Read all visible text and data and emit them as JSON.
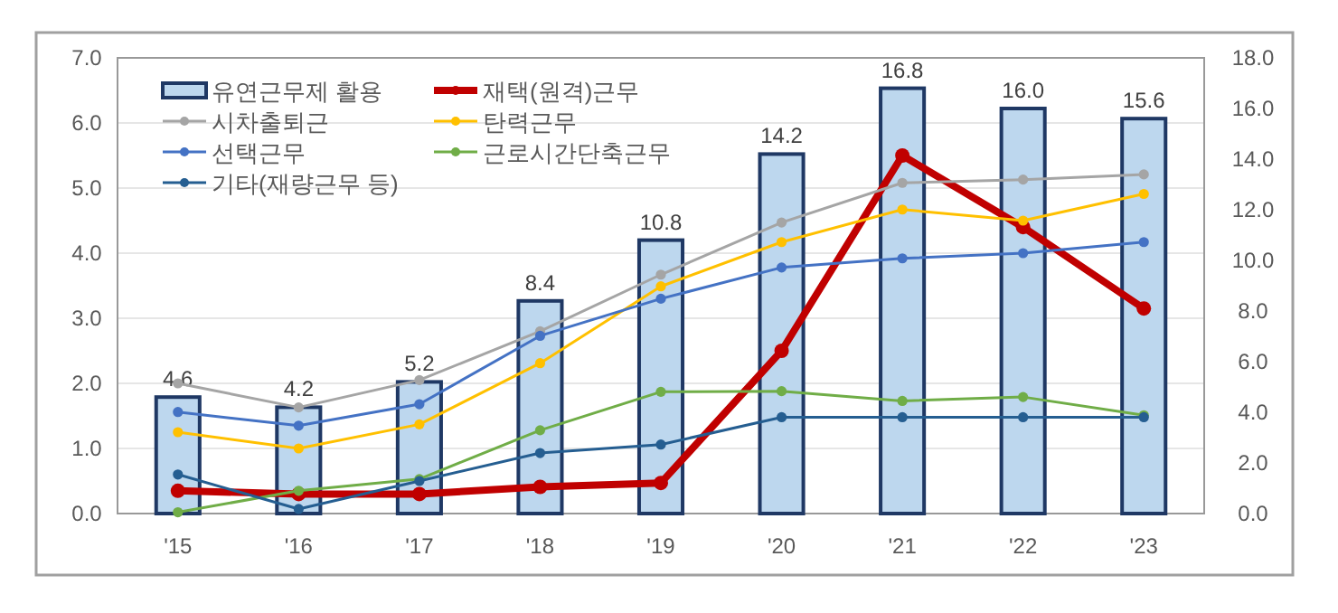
{
  "chart_data": {
    "type": "bar",
    "categories": [
      "'15",
      "'16",
      "'17",
      "'18",
      "'19",
      "'20",
      "'21",
      "'22",
      "'23"
    ],
    "series": [
      {
        "name": "유연근무제 활용",
        "axis": "y2",
        "color": "#bdd7ee",
        "values": [
          4.6,
          4.2,
          5.2,
          8.4,
          10.8,
          14.2,
          16.8,
          16.0,
          15.6
        ],
        "value_labels": [
          "4.6",
          "4.2",
          "5.2",
          "8.4",
          "10.8",
          "14.2",
          "16.8",
          "16.0",
          "15.6"
        ]
      },
      {
        "name": "재택(원격)근무",
        "type": "line",
        "color": "#c00000",
        "values": [
          0.35,
          0.3,
          0.3,
          0.41,
          0.47,
          2.5,
          5.5,
          4.4,
          3.15
        ]
      },
      {
        "name": "시차출퇴근",
        "type": "line",
        "color": "#a5a5a5",
        "values": [
          2.0,
          1.63,
          2.05,
          2.8,
          3.67,
          4.47,
          5.08,
          5.13,
          5.21
        ]
      },
      {
        "name": "탄력근무",
        "type": "line",
        "color": "#ffc000",
        "values": [
          1.25,
          1.0,
          1.37,
          2.31,
          3.49,
          4.17,
          4.67,
          4.5,
          4.91
        ]
      },
      {
        "name": "선택근무",
        "type": "line",
        "color": "#4472c4",
        "values": [
          1.56,
          1.35,
          1.68,
          2.73,
          3.3,
          3.78,
          3.92,
          4.0,
          4.17
        ]
      },
      {
        "name": "근로시간단축근무",
        "type": "line",
        "color": "#70ad47",
        "values": [
          0.02,
          0.35,
          0.53,
          1.28,
          1.87,
          1.88,
          1.73,
          1.79,
          1.51
        ]
      },
      {
        "name": "기타(재량근무 등)",
        "type": "line",
        "color": "#255e91",
        "values": [
          0.6,
          0.07,
          0.5,
          0.93,
          1.06,
          1.48,
          1.48,
          1.48,
          1.48
        ]
      }
    ],
    "ylim": [
      0,
      7
    ],
    "yticks": [
      {
        "value": 0,
        "label": "0.0"
      },
      {
        "value": 1,
        "label": "1.0"
      },
      {
        "value": 2,
        "label": "2.0"
      },
      {
        "value": 3,
        "label": "3.0"
      },
      {
        "value": 4,
        "label": "4.0"
      },
      {
        "value": 5,
        "label": "5.0"
      },
      {
        "value": 6,
        "label": "6.0"
      },
      {
        "value": 7,
        "label": "7.0"
      }
    ],
    "y2lim": [
      0,
      18
    ],
    "y2ticks": [
      {
        "value": 0,
        "label": "0.0"
      },
      {
        "value": 2,
        "label": "2.0"
      },
      {
        "value": 4,
        "label": "4.0"
      },
      {
        "value": 6,
        "label": "6.0"
      },
      {
        "value": 8,
        "label": "8.0"
      },
      {
        "value": 10,
        "label": "10.0"
      },
      {
        "value": 12,
        "label": "12.0"
      },
      {
        "value": 14,
        "label": "14.0"
      },
      {
        "value": 16,
        "label": "16.0"
      },
      {
        "value": 18,
        "label": "18.0"
      }
    ],
    "grid": "y",
    "legend": "top left",
    "marker": "circle"
  }
}
